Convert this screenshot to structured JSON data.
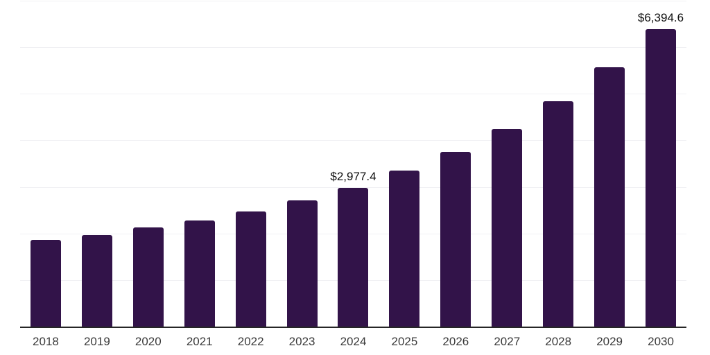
{
  "chart_data": {
    "type": "bar",
    "title": "",
    "xlabel": "",
    "ylabel": "",
    "categories": [
      "2018",
      "2019",
      "2020",
      "2021",
      "2022",
      "2023",
      "2024",
      "2025",
      "2026",
      "2027",
      "2028",
      "2029",
      "2030"
    ],
    "values": [
      1860,
      1970,
      2130,
      2275,
      2470,
      2705,
      2977.4,
      3355,
      3755,
      4245,
      4835,
      5565,
      6394.6
    ],
    "point_labels": [
      {
        "category": "2024",
        "label": "$2,977.4"
      },
      {
        "category": "2030",
        "label": "$6,394.6"
      }
    ],
    "ylim": [
      0,
      7000
    ],
    "gridline_interval": 1000,
    "grid": "horizontal",
    "legend": "none",
    "colors": {
      "bar": "#321349",
      "gridline": "#f0f0f3",
      "axis_line": "#262626",
      "tick_label": "#3a3a3a",
      "data_label": "#0d0d0d",
      "background": "#ffffff"
    }
  }
}
